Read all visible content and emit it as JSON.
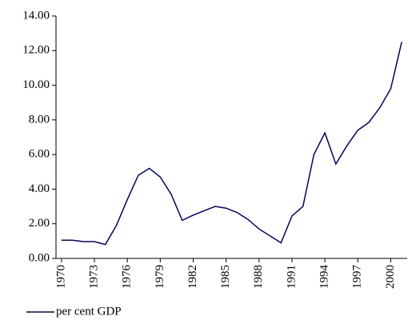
{
  "chart_data": {
    "type": "line",
    "x": [
      1970,
      1971,
      1972,
      1973,
      1974,
      1975,
      1976,
      1977,
      1978,
      1979,
      1980,
      1981,
      1982,
      1983,
      1984,
      1985,
      1986,
      1987,
      1988,
      1989,
      1990,
      1991,
      1992,
      1993,
      1994,
      1995,
      1996,
      1997,
      1998,
      1999,
      2000,
      2001
    ],
    "series": [
      {
        "name": "per cent GDP",
        "color": "#000080",
        "values": [
          1.05,
          1.05,
          0.97,
          0.97,
          0.8,
          1.9,
          3.4,
          4.8,
          5.2,
          4.7,
          3.7,
          2.2,
          2.5,
          2.75,
          3.0,
          2.9,
          2.65,
          2.25,
          1.7,
          1.3,
          0.9,
          2.45,
          3.0,
          6.0,
          7.25,
          5.45,
          6.5,
          7.4,
          7.85,
          8.7,
          9.8,
          12.5
        ]
      }
    ],
    "xlim": [
      1969.5,
      2001.5
    ],
    "xticks": [
      1970,
      1973,
      1976,
      1979,
      1982,
      1985,
      1988,
      1991,
      1994,
      1997,
      2000
    ],
    "ylim": [
      0,
      14
    ],
    "yticks": [
      {
        "value": 0,
        "label": "0.00"
      },
      {
        "value": 2,
        "label": "2.00"
      },
      {
        "value": 4,
        "label": "4.00"
      },
      {
        "value": 6,
        "label": "6.00"
      },
      {
        "value": 8,
        "label": "8.00"
      },
      {
        "value": 10,
        "label": "10.00"
      },
      {
        "value": 12,
        "label": "12.00"
      },
      {
        "value": 14,
        "label": "14.00"
      }
    ],
    "legend": "bottom-left"
  }
}
